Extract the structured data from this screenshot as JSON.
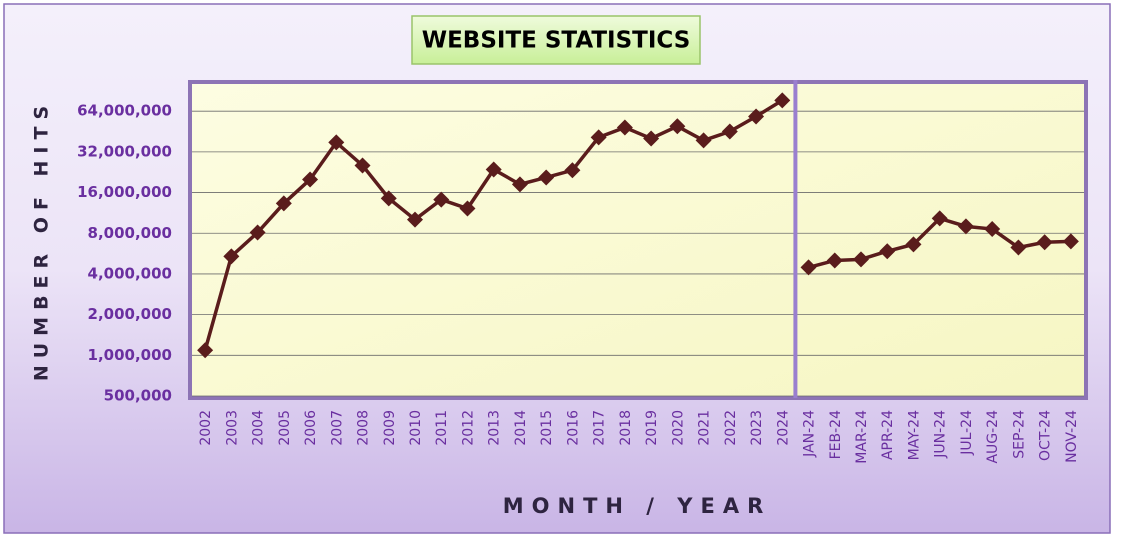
{
  "chart_data": {
    "type": "line",
    "title": "WEBSITE STATISTICS",
    "x_label": "MONTH / YEAR",
    "y_label": "NUMBER OF HITS",
    "yscale": "log",
    "grid": true,
    "categories": [
      "2002",
      "2003",
      "2004",
      "2005",
      "2006",
      "2007",
      "2008",
      "2009",
      "2010",
      "2011",
      "2012",
      "2013",
      "2014",
      "2015",
      "2016",
      "2017",
      "2018",
      "2019",
      "2020",
      "2021",
      "2022",
      "2023",
      "2024",
      "JAN-24",
      "FEB-24",
      "MAR-24",
      "APR-24",
      "MAY-24",
      "JUN-24",
      "JUL-24",
      "AUG-24",
      "SEP-24",
      "OCT-24",
      "NOV-24"
    ],
    "series": [
      {
        "color": "#5a1c1c",
        "values": [
          1090000,
          5400000,
          8100000,
          13300000,
          20000000,
          37600000,
          25400000,
          14500000,
          10100000,
          14200000,
          12200000,
          23700000,
          18400000,
          20700000,
          23400000,
          41000000,
          48500000,
          40200000,
          49500000,
          38900000,
          45300000,
          58500000,
          77000000,
          null,
          null,
          null,
          null,
          null,
          null,
          null,
          null,
          null,
          null,
          null
        ]
      },
      {
        "color": "#5a1c1c",
        "values": [
          null,
          null,
          null,
          null,
          null,
          null,
          null,
          null,
          null,
          null,
          null,
          null,
          null,
          null,
          null,
          null,
          null,
          null,
          null,
          null,
          null,
          null,
          null,
          4470000,
          5030000,
          5130000,
          5890000,
          6620000,
          10300000,
          9000000,
          8600000,
          6280000,
          6860000,
          6960000
        ]
      }
    ],
    "ylim": [
      500000,
      100000000
    ],
    "yticks": [
      {
        "value": 500000,
        "label": "500,000"
      },
      {
        "value": 1000000,
        "label": "1,000,000"
      },
      {
        "value": 2000000,
        "label": "2,000,000"
      },
      {
        "value": 4000000,
        "label": "4,000,000"
      },
      {
        "value": 8000000,
        "label": "8,000,000"
      },
      {
        "value": 16000000,
        "label": "16,000,000"
      },
      {
        "value": 32000000,
        "label": "32,000,000"
      },
      {
        "value": 64000000,
        "label": "64,000,000"
      }
    ]
  }
}
